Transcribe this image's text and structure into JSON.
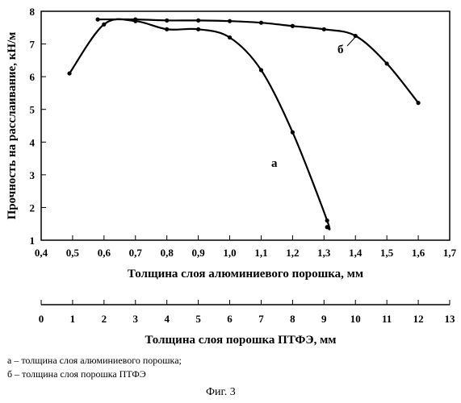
{
  "chart_data": {
    "type": "line",
    "ylabel": "Прочность на расслаивание, кН/м",
    "ylim": [
      1,
      8
    ],
    "y_ticks": [
      "1",
      "2",
      "3",
      "4",
      "5",
      "6",
      "7",
      "8"
    ],
    "x_axis": {
      "xlabel": "Толщина слоя алюминиевого порошка, мм",
      "xlim": [
        0.4,
        1.7
      ],
      "ticks": [
        "0,4",
        "0,5",
        "0,6",
        "0,7",
        "0,8",
        "0,9",
        "1,0",
        "1,1",
        "1,2",
        "1,3",
        "1,4",
        "1,5",
        "1,6",
        "1,7"
      ]
    },
    "x_axis_2": {
      "xlabel": "Толщина слоя порошка ПТФЭ, мм",
      "xlim": [
        0,
        13
      ],
      "ticks": [
        "0",
        "1",
        "2",
        "3",
        "4",
        "5",
        "6",
        "7",
        "8",
        "9",
        "10",
        "11",
        "12",
        "13"
      ]
    },
    "grid": false,
    "series": [
      {
        "name": "а",
        "axis": "x_axis",
        "x": [
          0.49,
          0.6,
          0.7,
          0.8,
          0.9,
          1.0,
          1.1,
          1.2,
          1.31,
          1.31
        ],
        "y": [
          6.1,
          7.6,
          7.7,
          7.45,
          7.45,
          7.2,
          6.2,
          4.3,
          1.6,
          1.4
        ]
      },
      {
        "name": "б",
        "axis": "x_axis_2",
        "x": [
          1.8,
          3,
          4,
          5,
          6,
          7,
          8,
          9,
          10,
          11,
          12
        ],
        "y": [
          7.75,
          7.75,
          7.72,
          7.72,
          7.7,
          7.65,
          7.55,
          7.45,
          7.25,
          6.4,
          5.2
        ]
      }
    ]
  },
  "legend": {
    "line_a": "а – толщина слоя алюминиевого порошка;",
    "line_b": "б – толщина слоя порошка ПТФЭ"
  },
  "caption": "Фиг. 3"
}
